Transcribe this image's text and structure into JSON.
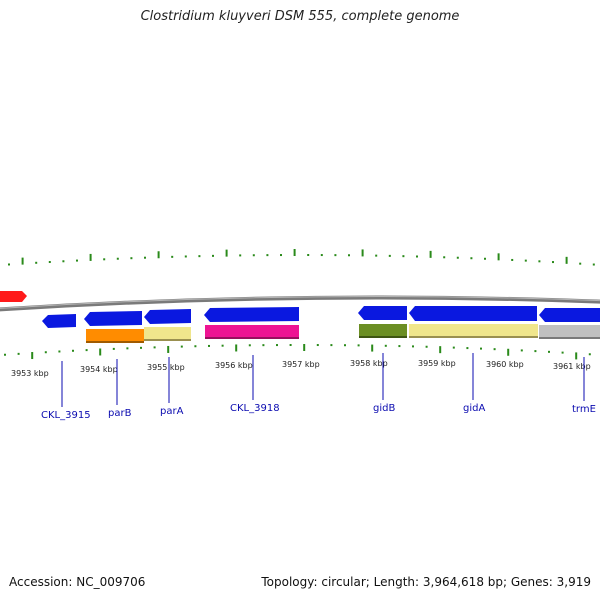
{
  "title": "Clostridium kluyveri DSM 555, complete genome",
  "footer": {
    "accession": "Accession: NC_009706",
    "summary": "Topology: circular; Length: 3,964,618 bp; Genes: 3,919"
  },
  "colors": {
    "backbone": "#8a8a8a",
    "tick": "#2a8a1a",
    "gene_label": "#0b0bb0",
    "strand_arrow": "#0a18e0",
    "left_arrow_red": "#ff1a1a"
  },
  "kbp_labels": [
    "3953 kbp",
    "3954 kbp",
    "3955 kbp",
    "3956 kbp",
    "3957 kbp",
    "3958 kbp",
    "3959 kbp",
    "3960 kbp",
    "3961 kbp"
  ],
  "gene_labels": [
    "CKL_3915",
    "parB",
    "parA",
    "CKL_3918",
    "gidB",
    "gidA",
    "trmE"
  ]
}
